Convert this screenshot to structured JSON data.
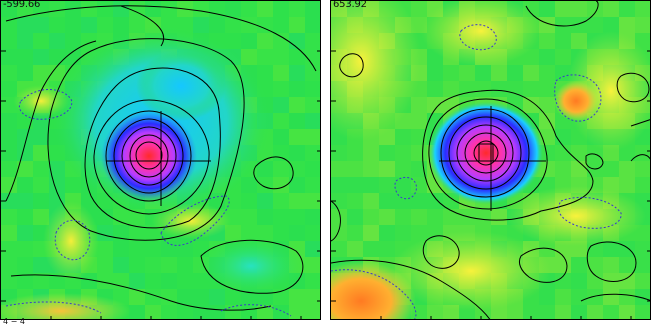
{
  "panels": [
    {
      "label": "-599.66",
      "colormap": "rainbow",
      "colors": {
        "background": "#2fe24a",
        "positive_contour": "#000000",
        "negative_contour": "#3a3acc"
      }
    },
    {
      "label": "653.92",
      "colormap": "rainbow",
      "colors": {
        "background": "#38e04a",
        "positive_contour": "#000000",
        "negative_contour": "#3a3acc"
      }
    }
  ],
  "footer": {
    "corner_text": "4 − 4"
  }
}
